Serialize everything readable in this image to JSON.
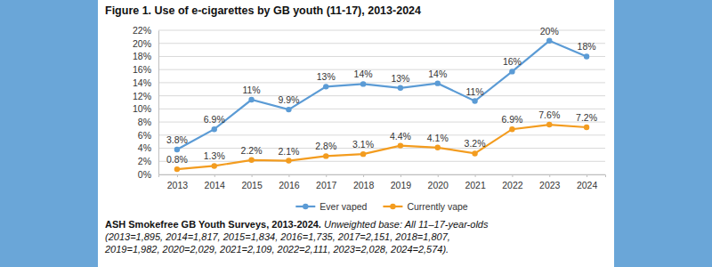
{
  "chart_data": {
    "type": "line",
    "title": "Figure 1. Use of e-cigarettes by GB youth (11-17), 2013-2024",
    "categories": [
      "2013",
      "2014",
      "2015",
      "2016",
      "2017",
      "2018",
      "2019",
      "2020",
      "2021",
      "2022",
      "2023",
      "2024"
    ],
    "series": [
      {
        "name": "Ever vaped",
        "color": "#5b9bd5",
        "marker": "circle",
        "line_style": "solid",
        "values": [
          3.8,
          6.9,
          11.4,
          9.9,
          13.4,
          13.8,
          13.2,
          13.9,
          11.2,
          15.7,
          20.4,
          18
        ],
        "value_labels": [
          "3.8%",
          "6.9%",
          "11%",
          "9.9%",
          "13%",
          "14%",
          "13%",
          "14%",
          "11%",
          "16%",
          "20%",
          "18%"
        ]
      },
      {
        "name": "Currently vape",
        "color": "#f39c1f",
        "marker": "circle",
        "line_style": "solid",
        "values": [
          0.8,
          1.3,
          2.2,
          2.1,
          2.8,
          3.1,
          4.4,
          4.1,
          3.2,
          6.9,
          7.6,
          7.2
        ],
        "value_labels": [
          "0.8%",
          "1.3%",
          "2.2%",
          "2.1%",
          "2.8%",
          "3.1%",
          "4.4%",
          "4.1%",
          "3.2%",
          "6.9%",
          "7.6%",
          "7.2%"
        ]
      }
    ],
    "ylim": [
      0,
      22
    ],
    "yticks": [
      {
        "value": 0,
        "label": "0%"
      },
      {
        "value": 2,
        "label": "2%"
      },
      {
        "value": 4,
        "label": "4%"
      },
      {
        "value": 6,
        "label": "6%"
      },
      {
        "value": 8,
        "label": "8%"
      },
      {
        "value": 10,
        "label": "10%"
      },
      {
        "value": 12,
        "label": "12%"
      },
      {
        "value": 14,
        "label": "14%"
      },
      {
        "value": 16,
        "label": "16%"
      },
      {
        "value": 18,
        "label": "18%"
      },
      {
        "value": 20,
        "label": "20%"
      },
      {
        "value": 22,
        "label": "22%"
      }
    ],
    "grid": true,
    "data_labels": true,
    "legend": "bottom",
    "source": "ASH Smokefree GB Youth Surveys, 2013-2024.",
    "note": [
      "Unweighted base: All 11–17-year-olds",
      "(2013=1,895, 2014=1,817, 2015=1,834, 2016=1,735, 2017=2,151, 2018=1,807,",
      "2019=1,982, 2020=2,029, 2021=2,109, 2022=2,111, 2023=2,028, 2024=2,574)."
    ]
  }
}
